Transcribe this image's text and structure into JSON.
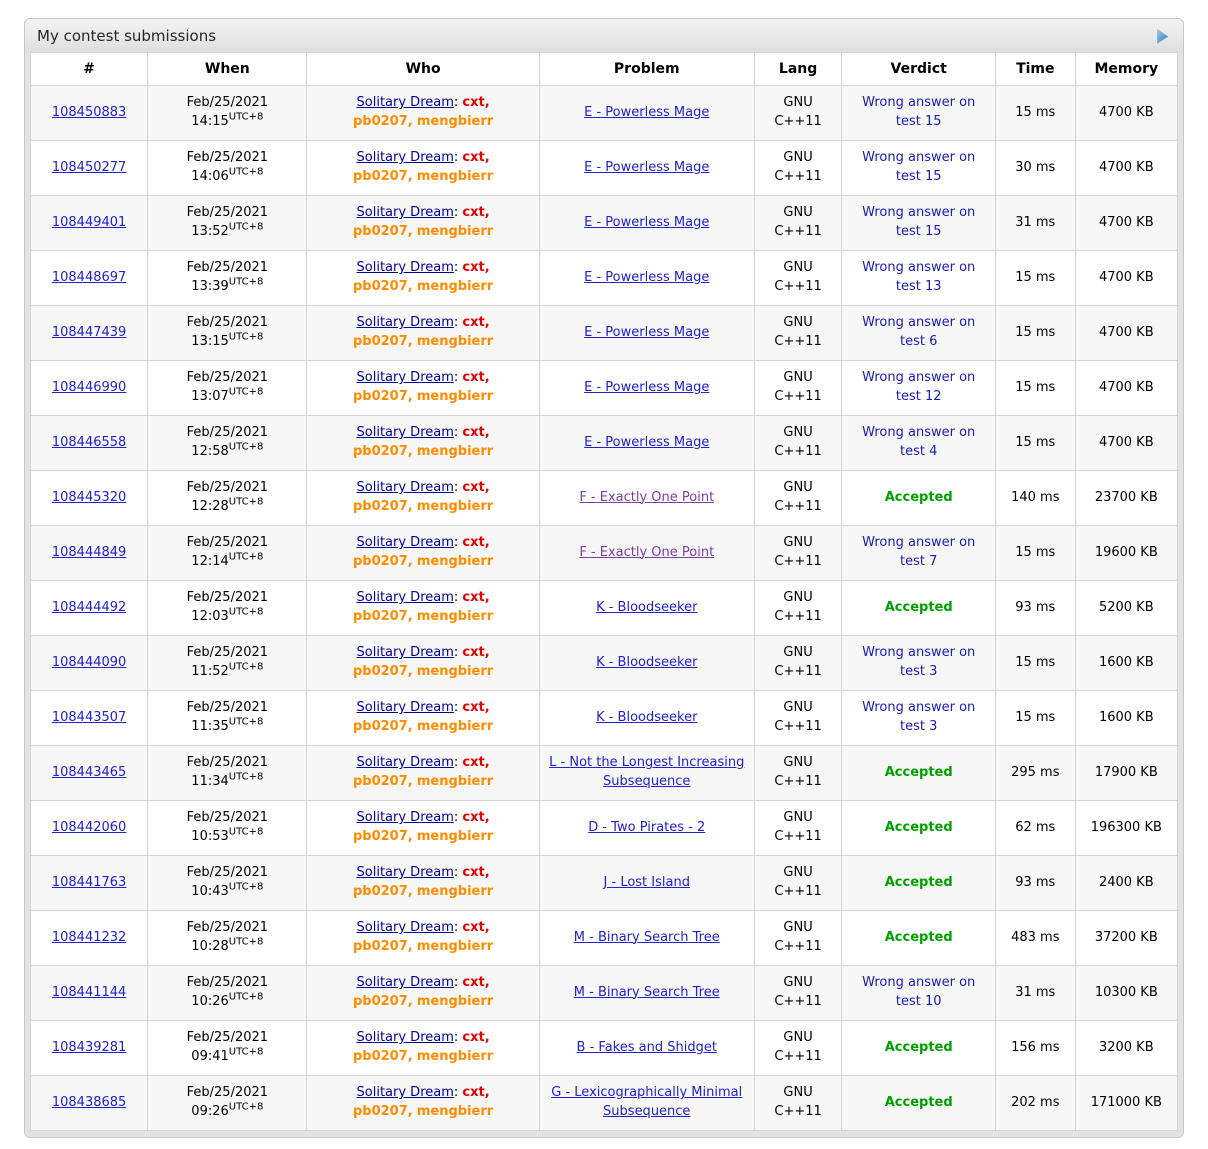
{
  "widget": {
    "title": "My contest submissions",
    "expand_icon": "triangle-right-icon"
  },
  "colors": {
    "c-link": "#2121cd",
    "c-team": "#000099",
    "c-visited": "#7b3fa0",
    "c-red": "#e60000",
    "c-orange": "#ff8c00",
    "c-ac": "#00a000",
    "c-wa": "#1a1ab8",
    "tri-light": "#9fc9ec",
    "tri-dark": "#2a7ab8"
  },
  "table": {
    "columns": [
      "#",
      "When",
      "Who",
      "Problem",
      "Lang",
      "Verdict",
      "Time",
      "Memory"
    ],
    "team": {
      "name": "Solitary Dream",
      "separator": ": ",
      "members": [
        {
          "handle": "cxt",
          "color_class": "red"
        },
        {
          "handle": "pb0207",
          "color_class": "orange"
        },
        {
          "handle": "mengbierr",
          "color_class": "orange"
        }
      ]
    },
    "rows": [
      {
        "id": "108450883",
        "date": "Feb/25/2021",
        "time": "14:15",
        "tz": "UTC+8",
        "problem": "E - Powerless Mage",
        "visited": false,
        "lang": "GNU C++11",
        "verdict": "Wrong answer on test 15",
        "accepted": false,
        "exec_time": "15 ms",
        "memory": "4700 KB"
      },
      {
        "id": "108450277",
        "date": "Feb/25/2021",
        "time": "14:06",
        "tz": "UTC+8",
        "problem": "E - Powerless Mage",
        "visited": false,
        "lang": "GNU C++11",
        "verdict": "Wrong answer on test 15",
        "accepted": false,
        "exec_time": "30 ms",
        "memory": "4700 KB"
      },
      {
        "id": "108449401",
        "date": "Feb/25/2021",
        "time": "13:52",
        "tz": "UTC+8",
        "problem": "E - Powerless Mage",
        "visited": false,
        "lang": "GNU C++11",
        "verdict": "Wrong answer on test 15",
        "accepted": false,
        "exec_time": "31 ms",
        "memory": "4700 KB"
      },
      {
        "id": "108448697",
        "date": "Feb/25/2021",
        "time": "13:39",
        "tz": "UTC+8",
        "problem": "E - Powerless Mage",
        "visited": false,
        "lang": "GNU C++11",
        "verdict": "Wrong answer on test 13",
        "accepted": false,
        "exec_time": "15 ms",
        "memory": "4700 KB"
      },
      {
        "id": "108447439",
        "date": "Feb/25/2021",
        "time": "13:15",
        "tz": "UTC+8",
        "problem": "E - Powerless Mage",
        "visited": false,
        "lang": "GNU C++11",
        "verdict": "Wrong answer on test 6",
        "accepted": false,
        "exec_time": "15 ms",
        "memory": "4700 KB"
      },
      {
        "id": "108446990",
        "date": "Feb/25/2021",
        "time": "13:07",
        "tz": "UTC+8",
        "problem": "E - Powerless Mage",
        "visited": false,
        "lang": "GNU C++11",
        "verdict": "Wrong answer on test 12",
        "accepted": false,
        "exec_time": "15 ms",
        "memory": "4700 KB"
      },
      {
        "id": "108446558",
        "date": "Feb/25/2021",
        "time": "12:58",
        "tz": "UTC+8",
        "problem": "E - Powerless Mage",
        "visited": false,
        "lang": "GNU C++11",
        "verdict": "Wrong answer on test 4",
        "accepted": false,
        "exec_time": "15 ms",
        "memory": "4700 KB"
      },
      {
        "id": "108445320",
        "date": "Feb/25/2021",
        "time": "12:28",
        "tz": "UTC+8",
        "problem": "F - Exactly One Point",
        "visited": true,
        "lang": "GNU C++11",
        "verdict": "Accepted",
        "accepted": true,
        "exec_time": "140 ms",
        "memory": "23700 KB"
      },
      {
        "id": "108444849",
        "date": "Feb/25/2021",
        "time": "12:14",
        "tz": "UTC+8",
        "problem": "F - Exactly One Point",
        "visited": true,
        "lang": "GNU C++11",
        "verdict": "Wrong answer on test 7",
        "accepted": false,
        "exec_time": "15 ms",
        "memory": "19600 KB"
      },
      {
        "id": "108444492",
        "date": "Feb/25/2021",
        "time": "12:03",
        "tz": "UTC+8",
        "problem": "K - Bloodseeker",
        "visited": false,
        "lang": "GNU C++11",
        "verdict": "Accepted",
        "accepted": true,
        "exec_time": "93 ms",
        "memory": "5200 KB"
      },
      {
        "id": "108444090",
        "date": "Feb/25/2021",
        "time": "11:52",
        "tz": "UTC+8",
        "problem": "K - Bloodseeker",
        "visited": false,
        "lang": "GNU C++11",
        "verdict": "Wrong answer on test 3",
        "accepted": false,
        "exec_time": "15 ms",
        "memory": "1600 KB"
      },
      {
        "id": "108443507",
        "date": "Feb/25/2021",
        "time": "11:35",
        "tz": "UTC+8",
        "problem": "K - Bloodseeker",
        "visited": false,
        "lang": "GNU C++11",
        "verdict": "Wrong answer on test 3",
        "accepted": false,
        "exec_time": "15 ms",
        "memory": "1600 KB"
      },
      {
        "id": "108443465",
        "date": "Feb/25/2021",
        "time": "11:34",
        "tz": "UTC+8",
        "problem": "L - Not the Longest Increasing Subsequence",
        "visited": false,
        "lang": "GNU C++11",
        "verdict": "Accepted",
        "accepted": true,
        "exec_time": "295 ms",
        "memory": "17900 KB"
      },
      {
        "id": "108442060",
        "date": "Feb/25/2021",
        "time": "10:53",
        "tz": "UTC+8",
        "problem": "D - Two Pirates - 2",
        "visited": false,
        "lang": "GNU C++11",
        "verdict": "Accepted",
        "accepted": true,
        "exec_time": "62 ms",
        "memory": "196300 KB"
      },
      {
        "id": "108441763",
        "date": "Feb/25/2021",
        "time": "10:43",
        "tz": "UTC+8",
        "problem": "J - Lost Island",
        "visited": false,
        "lang": "GNU C++11",
        "verdict": "Accepted",
        "accepted": true,
        "exec_time": "93 ms",
        "memory": "2400 KB"
      },
      {
        "id": "108441232",
        "date": "Feb/25/2021",
        "time": "10:28",
        "tz": "UTC+8",
        "problem": "M - Binary Search Tree",
        "visited": false,
        "lang": "GNU C++11",
        "verdict": "Accepted",
        "accepted": true,
        "exec_time": "483 ms",
        "memory": "37200 KB"
      },
      {
        "id": "108441144",
        "date": "Feb/25/2021",
        "time": "10:26",
        "tz": "UTC+8",
        "problem": "M - Binary Search Tree",
        "visited": false,
        "lang": "GNU C++11",
        "verdict": "Wrong answer on test 10",
        "accepted": false,
        "exec_time": "31 ms",
        "memory": "10300 KB"
      },
      {
        "id": "108439281",
        "date": "Feb/25/2021",
        "time": "09:41",
        "tz": "UTC+8",
        "problem": "B - Fakes and Shidget",
        "visited": false,
        "lang": "GNU C++11",
        "verdict": "Accepted",
        "accepted": true,
        "exec_time": "156 ms",
        "memory": "3200 KB"
      },
      {
        "id": "108438685",
        "date": "Feb/25/2021",
        "time": "09:26",
        "tz": "UTC+8",
        "problem": "G - Lexicographically Minimal Subsequence",
        "visited": false,
        "lang": "GNU C++11",
        "verdict": "Accepted",
        "accepted": true,
        "exec_time": "202 ms",
        "memory": "171000 KB"
      }
    ]
  }
}
